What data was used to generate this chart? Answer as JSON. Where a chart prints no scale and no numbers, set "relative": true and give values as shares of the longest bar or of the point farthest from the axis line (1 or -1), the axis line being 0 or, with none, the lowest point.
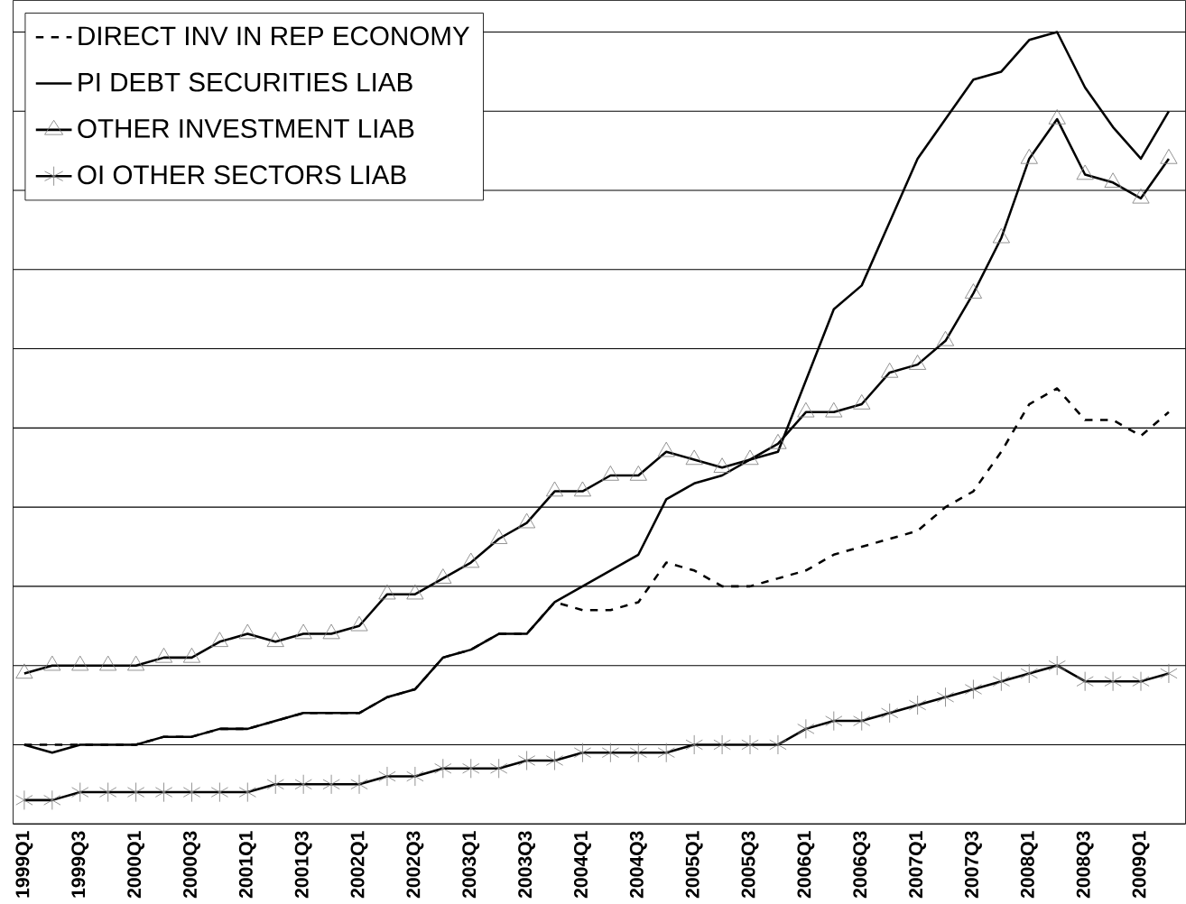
{
  "chart_data": {
    "type": "line",
    "relative": true,
    "grid": "y",
    "legend": "top left",
    "categories": [
      "1999Q1",
      null,
      "1999Q3",
      null,
      "2000Q1",
      null,
      "2000Q3",
      null,
      "2001Q1",
      null,
      "2001Q3",
      null,
      "2002Q1",
      null,
      "2002Q3",
      null,
      "2003Q1",
      null,
      "2003Q3",
      null,
      "2004Q1",
      null,
      "2004Q3",
      null,
      "2005Q1",
      null,
      "2005Q3",
      null,
      "2006Q1",
      null,
      "2006Q3",
      null,
      "2007Q1",
      null,
      "2007Q3",
      null,
      "2008Q1",
      null,
      "2008Q3",
      null,
      "2009Q1",
      null
    ],
    "series": [
      {
        "name": "DIRECT INV IN REP ECONOMY",
        "color": "#000000",
        "line_style": "dashed",
        "marker": "none",
        "values": [
          0.1,
          0.1,
          0.1,
          0.1,
          0.1,
          0.11,
          0.11,
          0.12,
          0.12,
          0.13,
          0.14,
          0.14,
          0.14,
          0.16,
          0.17,
          0.21,
          0.22,
          0.24,
          0.24,
          0.28,
          0.27,
          0.27,
          0.28,
          0.33,
          0.32,
          0.3,
          0.3,
          0.31,
          0.32,
          0.34,
          0.35,
          0.36,
          0.37,
          0.4,
          0.42,
          0.47,
          0.53,
          0.55,
          0.51,
          0.51,
          0.49,
          0.52
        ]
      },
      {
        "name": "PI DEBT SECURITIES LIAB",
        "color": "#000000",
        "line_style": "solid",
        "marker": "none",
        "values": [
          0.1,
          0.09,
          0.1,
          0.1,
          0.1,
          0.11,
          0.11,
          0.12,
          0.12,
          0.13,
          0.14,
          0.14,
          0.14,
          0.16,
          0.17,
          0.21,
          0.22,
          0.24,
          0.24,
          0.28,
          0.3,
          0.32,
          0.34,
          0.41,
          0.43,
          0.44,
          0.46,
          0.47,
          0.56,
          0.65,
          0.68,
          0.76,
          0.84,
          0.89,
          0.94,
          0.95,
          0.99,
          1,
          0.93,
          0.88,
          0.84,
          0.9
        ]
      },
      {
        "name": "OTHER INVESTMENT LIAB",
        "color": "#000000",
        "line_style": "solid",
        "marker": "triangle",
        "values": [
          0.19,
          0.2,
          0.2,
          0.2,
          0.2,
          0.21,
          0.21,
          0.23,
          0.24,
          0.23,
          0.24,
          0.24,
          0.25,
          0.29,
          0.29,
          0.31,
          0.33,
          0.36,
          0.38,
          0.42,
          0.42,
          0.44,
          0.44,
          0.47,
          0.46,
          0.45,
          0.46,
          0.48,
          0.52,
          0.52,
          0.53,
          0.57,
          0.58,
          0.61,
          0.67,
          0.74,
          0.84,
          0.89,
          0.82,
          0.81,
          0.79,
          0.84
        ]
      },
      {
        "name": "OI OTHER SECTORS LIAB",
        "color": "#000000",
        "line_style": "solid",
        "marker": "cross",
        "values": [
          0.03,
          0.03,
          0.04,
          0.04,
          0.04,
          0.04,
          0.04,
          0.04,
          0.04,
          0.05,
          0.05,
          0.05,
          0.05,
          0.06,
          0.06,
          0.07,
          0.07,
          0.07,
          0.08,
          0.08,
          0.09,
          0.09,
          0.09,
          0.09,
          0.1,
          0.1,
          0.1,
          0.1,
          0.12,
          0.13,
          0.13,
          0.14,
          0.15,
          0.16,
          0.17,
          0.18,
          0.19,
          0.2,
          0.18,
          0.18,
          0.18,
          0.19
        ]
      }
    ]
  }
}
